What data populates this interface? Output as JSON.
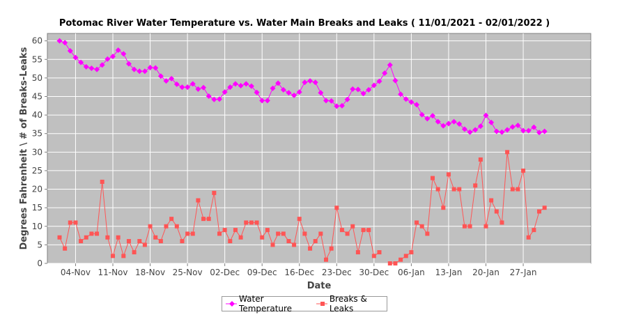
{
  "chart_data": {
    "type": "line",
    "title": "Potomac River Water Temperature vs. Water Main Breaks and Leaks  ( 11/01/2021 - 02/01/2022 )",
    "xlabel": "Date",
    "ylabel": "Degrees Fahrenheit \\ # of Breaks-Leaks",
    "ylim": [
      0,
      62
    ],
    "yticks": [
      0,
      5,
      10,
      15,
      20,
      25,
      30,
      35,
      40,
      45,
      50,
      55,
      60
    ],
    "xticks": [
      "04-Nov",
      "11-Nov",
      "18-Nov",
      "25-Nov",
      "02-Dec",
      "09-Dec",
      "16-Dec",
      "23-Dec",
      "30-Dec",
      "06-Jan",
      "13-Jan",
      "20-Jan",
      "27-Jan"
    ],
    "xtick_day_index": [
      3,
      10,
      17,
      24,
      31,
      38,
      45,
      52,
      59,
      66,
      73,
      80,
      87
    ],
    "x_start": "2021-11-01",
    "grid": true,
    "legend": "bottom",
    "background_color": "#c0c0c0",
    "series": [
      {
        "name": "Water Temperature",
        "color": "#ff00ff",
        "marker": "diamond",
        "values": [
          60,
          59.5,
          57.3,
          55.5,
          54.2,
          53,
          52.6,
          52.3,
          53.5,
          55.1,
          55.8,
          57.5,
          56.5,
          53.8,
          52.3,
          51.8,
          51.8,
          52.8,
          52.7,
          50.5,
          49.2,
          49.8,
          48.3,
          47.5,
          47.5,
          48.4,
          47,
          47.4,
          45.1,
          44.2,
          44.3,
          46.2,
          47.5,
          48.4,
          47.9,
          48.4,
          47.8,
          46.1,
          43.9,
          43.9,
          47.2,
          48.6,
          46.8,
          46,
          45.3,
          46.2,
          48.8,
          49.2,
          48.8,
          46,
          43.9,
          43.8,
          42.4,
          42.5,
          44.2,
          47,
          46.9,
          45.8,
          46.8,
          48,
          49.1,
          51.3,
          53.5,
          49.3,
          45.6,
          44.3,
          43.5,
          42.8,
          40.1,
          39,
          39.8,
          38.2,
          37.1,
          37.7,
          38.2,
          37.6,
          36.2,
          35.4,
          36,
          37,
          39.9,
          38,
          35.6,
          35.4,
          36,
          36.8,
          37.2,
          35.8,
          35.8,
          36.7,
          35.3,
          35.6
        ]
      },
      {
        "name": "Breaks & Leaks",
        "color": "#ff5555",
        "marker": "square",
        "values": [
          7,
          4,
          11,
          11,
          6,
          7,
          8,
          8,
          22,
          7,
          2,
          7,
          2,
          6,
          3,
          6,
          5,
          10,
          7,
          6,
          10,
          12,
          10,
          6,
          8,
          8,
          17,
          12,
          12,
          19,
          8,
          9,
          6,
          9,
          7,
          11,
          11,
          11,
          7,
          9,
          5,
          8,
          8,
          6,
          5,
          12,
          8,
          4,
          6,
          8,
          1,
          4,
          15,
          9,
          8,
          10,
          3,
          9,
          9,
          2,
          3,
          null,
          0,
          0,
          1,
          2,
          3,
          11,
          10,
          8,
          23,
          20,
          15,
          24,
          20,
          20,
          10,
          10,
          21,
          28,
          10,
          17,
          14,
          11,
          30,
          20,
          20,
          25,
          7,
          9,
          14,
          15
        ]
      }
    ]
  }
}
